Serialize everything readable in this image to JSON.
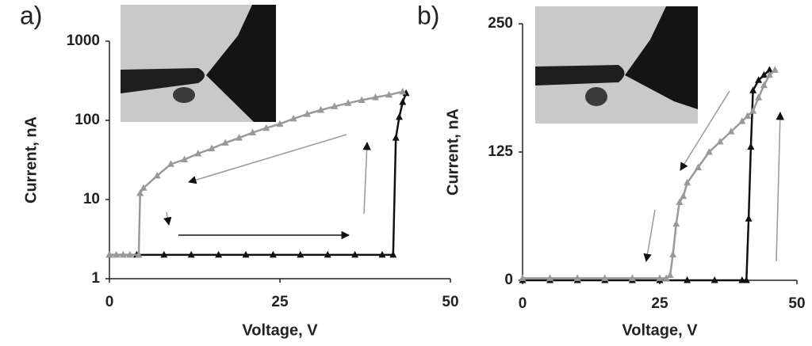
{
  "chart_data": [
    {
      "type": "line",
      "label": "a)",
      "x_label": "Voltage, V",
      "y_label": "Current, nA",
      "log_y": true,
      "xlim": [
        0,
        50
      ],
      "ylim": [
        1,
        1000
      ],
      "xticks": [
        0,
        25,
        50
      ],
      "yticks": [
        1,
        10,
        100,
        1000
      ],
      "series": [
        {
          "color": "#111111",
          "x": [
            0,
            4,
            8,
            12,
            16,
            20,
            24,
            28,
            32,
            36,
            40,
            41.6,
            42,
            42.5,
            43,
            43.5
          ],
          "values": [
            2,
            2,
            2,
            2,
            2,
            2,
            2,
            2,
            2,
            2,
            2,
            2,
            60,
            110,
            170,
            220
          ]
        },
        {
          "color": "#999999",
          "x": [
            43,
            41,
            39,
            37,
            35,
            33,
            31,
            29,
            27,
            25,
            23,
            21,
            19,
            17,
            15,
            13,
            11,
            9,
            7,
            5,
            4.5,
            4.3,
            3,
            2,
            1,
            0
          ],
          "values": [
            230,
            210,
            195,
            180,
            165,
            150,
            135,
            120,
            105,
            90,
            80,
            70,
            60,
            52,
            44,
            38,
            32,
            28,
            20,
            14,
            12,
            2,
            2,
            2,
            2,
            2
          ]
        }
      ]
    },
    {
      "type": "line",
      "label": "b)",
      "x_label": "Voltage, V",
      "y_label": "Current, nA",
      "log_y": false,
      "xlim": [
        0,
        50
      ],
      "ylim": [
        0,
        250
      ],
      "xticks": [
        0,
        25,
        50
      ],
      "yticks": [
        0,
        125,
        250
      ],
      "series": [
        {
          "color": "#111111",
          "x": [
            0,
            5,
            10,
            15,
            20,
            25,
            30,
            35,
            40,
            40.8,
            41.2,
            41.6,
            42,
            43,
            44,
            45
          ],
          "values": [
            0,
            0,
            0,
            0,
            0,
            0,
            0,
            0,
            0,
            0,
            60,
            130,
            185,
            195,
            200,
            205
          ]
        },
        {
          "color": "#999999",
          "x": [
            46,
            45,
            44,
            43,
            42,
            41,
            40,
            38,
            36,
            34,
            32,
            30,
            29.3,
            28.6,
            28,
            27.4,
            26.9,
            26.2,
            25,
            20,
            15,
            10,
            5,
            0
          ],
          "values": [
            205,
            200,
            190,
            178,
            165,
            160,
            155,
            145,
            135,
            125,
            110,
            95,
            82,
            76,
            55,
            25,
            5,
            2,
            2,
            2,
            2,
            2,
            2,
            2
          ]
        }
      ]
    }
  ]
}
